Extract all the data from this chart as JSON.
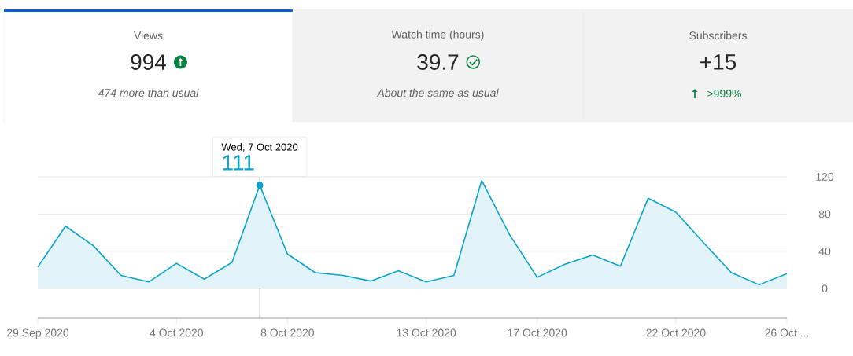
{
  "chart_data": [
    {
      "type": "other",
      "title": "Views",
      "annotations": [
        "994",
        "474 more than usual"
      ]
    },
    {
      "type": "other",
      "title": "Watch time (hours)",
      "annotations": [
        "39.7",
        "About the same as usual"
      ]
    },
    {
      "type": "other",
      "title": "Subscribers",
      "annotations": [
        "+15",
        ">999%"
      ]
    },
    {
      "type": "area",
      "color": "#0aa3cb",
      "x": [
        "2020-09-29",
        "2020-09-30",
        "2020-10-01",
        "2020-10-02",
        "2020-10-03",
        "2020-10-04",
        "2020-10-05",
        "2020-10-06",
        "2020-10-07",
        "2020-10-08",
        "2020-10-09",
        "2020-10-10",
        "2020-10-11",
        "2020-10-12",
        "2020-10-13",
        "2020-10-14",
        "2020-10-15",
        "2020-10-16",
        "2020-10-17",
        "2020-10-18",
        "2020-10-19",
        "2020-10-20",
        "2020-10-21",
        "2020-10-22",
        "2020-10-23",
        "2020-10-24",
        "2020-10-25",
        "2020-10-26"
      ],
      "values": [
        23,
        67,
        46,
        14,
        7,
        27,
        10,
        28,
        111,
        37,
        17,
        14,
        8,
        19,
        7,
        14,
        116,
        58,
        12,
        26,
        36,
        24,
        97,
        82,
        49,
        17,
        4,
        16
      ],
      "xlim": [
        "2020-09-29",
        "2020-10-26"
      ],
      "xticks": [
        {
          "value": "2020-09-29",
          "label": "29 Sep 2020"
        },
        {
          "value": "2020-10-04",
          "label": "4 Oct 2020"
        },
        {
          "value": "2020-10-08",
          "label": "8 Oct 2020"
        },
        {
          "value": "2020-10-13",
          "label": "13 Oct 2020"
        },
        {
          "value": "2020-10-17",
          "label": "17 Oct 2020"
        },
        {
          "value": "2020-10-22",
          "label": "22 Oct 2020"
        },
        {
          "value": "2020-10-26",
          "label": "26 Oct ..."
        }
      ],
      "ylim": [
        -32,
        120
      ],
      "yticks": [
        0,
        40,
        80,
        120
      ],
      "grid": "y",
      "ref_lines": [
        {
          "axis": "x",
          "value": "2020-10-07",
          "color": "#9e9e9e"
        }
      ],
      "annotations": [
        "Wed, 7 Oct 2020",
        {
          "text": "111",
          "x": "2020-10-07",
          "y": 111
        }
      ]
    }
  ]
}
